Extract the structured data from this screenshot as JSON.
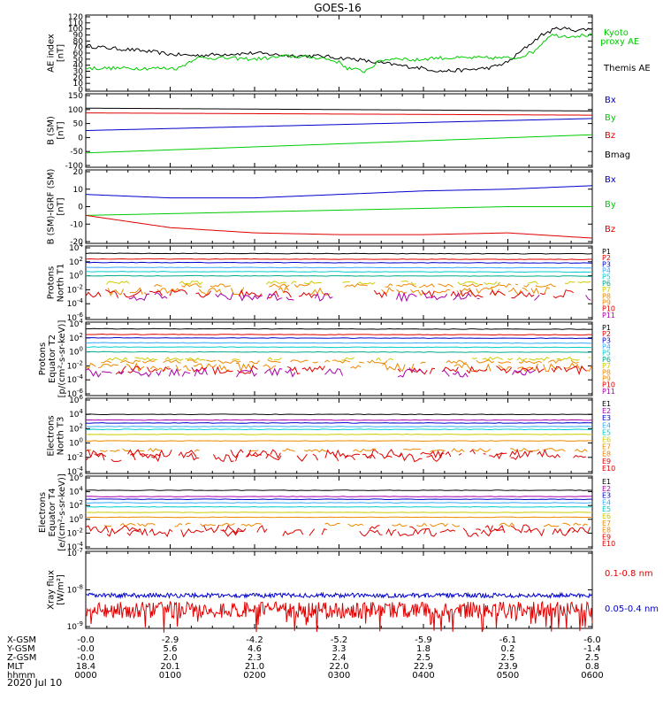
{
  "title": "GOES-16",
  "colors": {
    "black": "#000000",
    "red": "#e00000",
    "green": "#00cc00",
    "blue": "#0000cc",
    "cyan": "#00cccc",
    "teal": "#00aa88",
    "yellow": "#cccc00",
    "orange": "#ee8800",
    "magenta": "#aa00aa",
    "lightblue": "#33aaff"
  },
  "x_axis": {
    "hhmm": [
      "0000",
      "0100",
      "0200",
      "0300",
      "0400",
      "0500",
      "0600"
    ],
    "rows": [
      {
        "label": "X-GSM",
        "values": [
          "-0.0",
          "-2.9",
          "-4.2",
          "-5.2",
          "-5.9",
          "-6.1",
          "-6.0"
        ]
      },
      {
        "label": "Y-GSM",
        "values": [
          "-0.0",
          "5.6",
          "4.6",
          "3.3",
          "1.8",
          "0.2",
          "-1.4"
        ]
      },
      {
        "label": "Z-GSM",
        "values": [
          "-0.0",
          "2.0",
          "2.3",
          "2.4",
          "2.5",
          "2.5",
          "2.5"
        ]
      },
      {
        "label": "MLT",
        "values": [
          "18.4",
          "20.1",
          "21.0",
          "22.0",
          "22.9",
          "23.9",
          "0.8"
        ]
      },
      {
        "label": "hhmm",
        "values": [
          "0000",
          "0100",
          "0200",
          "0300",
          "0400",
          "0500",
          "0600"
        ]
      }
    ],
    "date": "2020 Jul 10"
  },
  "chart_data": [
    {
      "type": "line",
      "ylabel": "AE index [nT]",
      "ylim": [
        0,
        120
      ],
      "ticks": [
        "0",
        "10",
        "20",
        "30",
        "40",
        "50",
        "60",
        "70",
        "80",
        "90",
        "100",
        "110",
        "120"
      ],
      "legend": [
        {
          "text": "Kyoto proxy AE",
          "color": "green"
        },
        {
          "text": "Themis AE",
          "color": "black"
        }
      ],
      "series": [
        {
          "name": "Themis AE",
          "color": "black",
          "x": [
            0,
            0.3,
            0.5,
            0.8,
            1.0,
            1.3,
            1.6,
            2.0,
            2.4,
            2.8,
            3.0,
            3.2,
            3.4,
            3.6,
            3.8,
            4.0,
            4.2,
            4.5,
            4.8,
            5.0,
            5.2,
            5.4,
            5.6,
            5.8,
            6.0
          ],
          "y": [
            72,
            68,
            66,
            62,
            58,
            56,
            58,
            60,
            56,
            55,
            52,
            50,
            45,
            42,
            38,
            35,
            30,
            32,
            36,
            45,
            68,
            90,
            102,
            98,
            100
          ]
        },
        {
          "name": "Kyoto proxy AE",
          "color": "green",
          "x": [
            0,
            0.5,
            0.9,
            1.1,
            1.3,
            1.6,
            2.0,
            2.4,
            2.8,
            3.0,
            3.1,
            3.3,
            3.5,
            3.7,
            3.9,
            4.1,
            4.5,
            4.9,
            5.1,
            5.3,
            5.5,
            5.7,
            6.0
          ],
          "y": [
            35,
            35,
            35,
            35,
            52,
            52,
            50,
            55,
            52,
            45,
            35,
            30,
            48,
            52,
            48,
            52,
            52,
            52,
            52,
            62,
            90,
            88,
            90
          ]
        }
      ]
    },
    {
      "type": "line",
      "ylabel": "B (SM) [nT]",
      "ylim": [
        -100,
        150
      ],
      "ticks": [
        "150",
        "100",
        "50",
        "0",
        "-50",
        "-100"
      ],
      "legend": [
        {
          "text": "Bx",
          "color": "blue"
        },
        {
          "text": "By",
          "color": "green"
        },
        {
          "text": "Bz",
          "color": "red"
        },
        {
          "text": "Bmag",
          "color": "black"
        }
      ],
      "series": [
        {
          "name": "Bmag",
          "color": "black",
          "x": [
            0,
            6
          ],
          "y": [
            105,
            95
          ]
        },
        {
          "name": "Bz",
          "color": "red",
          "x": [
            0,
            6
          ],
          "y": [
            88,
            80
          ]
        },
        {
          "name": "Bx",
          "color": "blue",
          "x": [
            0,
            6
          ],
          "y": [
            25,
            68
          ]
        },
        {
          "name": "By",
          "color": "green",
          "x": [
            0,
            6
          ],
          "y": [
            -55,
            10
          ]
        }
      ]
    },
    {
      "type": "line",
      "ylabel": "B (SM)-IGRF (SM) [nT]",
      "ylim": [
        -20,
        20
      ],
      "ticks": [
        "20",
        "10",
        "0",
        "-10",
        "-20"
      ],
      "legend": [
        {
          "text": "Bx",
          "color": "blue"
        },
        {
          "text": "By",
          "color": "green"
        },
        {
          "text": "Bz",
          "color": "red"
        }
      ],
      "series": [
        {
          "name": "Bx",
          "color": "blue",
          "x": [
            0,
            1,
            2,
            3,
            4,
            5,
            6
          ],
          "y": [
            7,
            5,
            5,
            7,
            9,
            10,
            12
          ]
        },
        {
          "name": "By",
          "color": "green",
          "x": [
            0,
            1,
            2,
            3,
            4,
            5,
            6
          ],
          "y": [
            -5,
            -4,
            -3,
            -2,
            -1,
            0,
            0
          ]
        },
        {
          "name": "Bz",
          "color": "red",
          "x": [
            0,
            1,
            2,
            3,
            4,
            5,
            6
          ],
          "y": [
            -5,
            -12,
            -15,
            -16,
            -16,
            -15,
            -18
          ]
        }
      ]
    },
    {
      "type": "line",
      "ylabel": "Protons North T1",
      "log": true,
      "ylim": [
        -6,
        4
      ],
      "ticks": [
        "10^4",
        "10^2",
        "10^0",
        "10^-2",
        "10^-4",
        "10^-6"
      ],
      "legend": [
        "P1",
        "P2",
        "P3",
        "P4",
        "P5",
        "P6",
        "P7",
        "P8",
        "P9",
        "P10",
        "P11"
      ],
      "levels": [
        3.2,
        2.4,
        1.9,
        1.2,
        0.6,
        0.0,
        -1.0,
        -1.4,
        -2.2,
        -2.6,
        -3.0
      ]
    },
    {
      "type": "line",
      "ylabel": "Protons Equator T2 [p/(cm^2-s-sr-keV)]",
      "log": true,
      "ylim": [
        -6,
        4
      ],
      "ticks": [
        "10^4",
        "10^2",
        "10^0",
        "10^-2",
        "10^-4",
        "10^-6"
      ],
      "legend": [
        "P1",
        "P2",
        "P3",
        "P4",
        "P5",
        "P6",
        "P7",
        "P8",
        "P9",
        "P10",
        "P11"
      ],
      "levels": [
        3.3,
        2.5,
        2.0,
        1.3,
        0.7,
        0.0,
        -1.0,
        -1.4,
        -2.2,
        -2.6,
        -3.0
      ]
    },
    {
      "type": "line",
      "ylabel": "Electrons North T3",
      "log": true,
      "ylim": [
        -4,
        6
      ],
      "ticks": [
        "10^6",
        "10^4",
        "10^2",
        "10^0",
        "10^-2",
        "10^-4"
      ],
      "legend": [
        "E1",
        "E2",
        "E3",
        "E4",
        "E5",
        "E6",
        "E7",
        "E8",
        "E9",
        "E10"
      ],
      "levels": [
        4.0,
        3.2,
        2.8,
        2.3,
        1.9,
        1.2,
        0.3,
        -1.0,
        -1.5,
        -2.0
      ]
    },
    {
      "type": "line",
      "ylabel": "Electrons Equator T4 [e/(cm^2-s-sr-keV)]",
      "log": true,
      "ylim": [
        -4,
        6
      ],
      "ticks": [
        "10^6",
        "10^4",
        "10^2",
        "10^0",
        "10^-2",
        "10^-4"
      ],
      "legend": [
        "E1",
        "E2",
        "E3",
        "E4",
        "E5",
        "E6",
        "E7",
        "E8",
        "E9",
        "E10"
      ],
      "levels": [
        4.2,
        3.3,
        2.9,
        2.4,
        1.8,
        1.0,
        0.3,
        -0.8,
        -1.4,
        -1.9
      ]
    },
    {
      "type": "line",
      "ylabel": "Xray flux [W/m^2]",
      "log": true,
      "ylim": [
        -9,
        -7
      ],
      "ticks": [
        "10^-7",
        "10^-8",
        "10^-9"
      ],
      "legend": [
        {
          "text": "0.1-0.8 nm",
          "color": "red"
        },
        {
          "text": "0.05-0.4 nm",
          "color": "blue"
        }
      ],
      "series": [
        {
          "name": "0.1-0.8 nm",
          "color": "red",
          "base": -8.55
        },
        {
          "name": "0.05-0.4 nm",
          "color": "blue",
          "base": -8.15
        }
      ]
    }
  ]
}
